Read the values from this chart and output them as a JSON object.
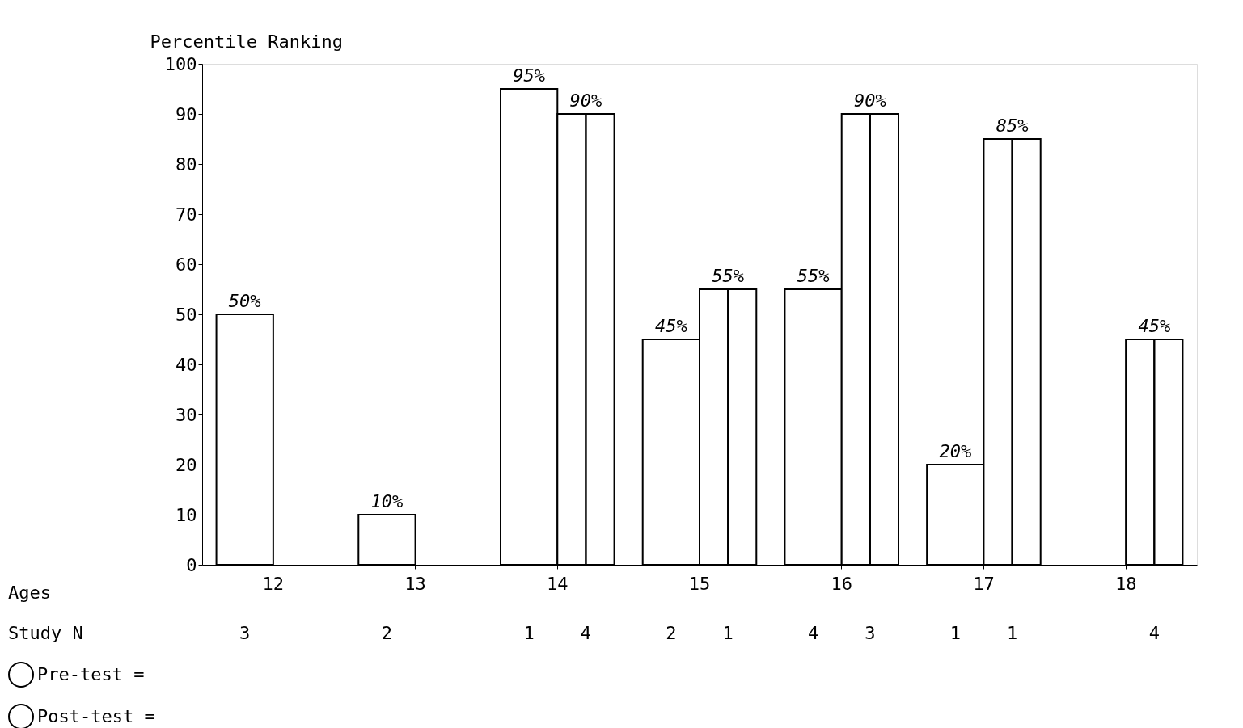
{
  "chart_data": {
    "type": "bar",
    "ylabel": "Percentile Ranking",
    "categories": [
      "12",
      "13",
      "14",
      "15",
      "16",
      "17",
      "18"
    ],
    "series": [
      {
        "name": "Pre-test =",
        "color": "#ffffff",
        "values": [
          50,
          10,
          95,
          45,
          55,
          20,
          null
        ],
        "value_labels": [
          "50%",
          "10%",
          "95%",
          "45%",
          "55%",
          "20%",
          null
        ]
      },
      {
        "name": "Post-test =",
        "color": "#ffffff",
        "values": [
          null,
          null,
          90,
          55,
          90,
          85,
          45
        ],
        "value_labels": [
          null,
          null,
          "90%",
          "55%",
          "90%",
          "85%",
          "45%"
        ]
      }
    ],
    "ylim": [
      0,
      100
    ],
    "yticks": [
      0,
      10,
      20,
      30,
      40,
      50,
      60,
      70,
      80,
      90,
      100
    ],
    "grid": false,
    "legend": "bottom left",
    "annotations": [
      "Ages",
      "Study N",
      "3",
      "2",
      "1",
      "4",
      "2",
      "1",
      "4",
      "3",
      "1",
      "1",
      "4"
    ]
  }
}
